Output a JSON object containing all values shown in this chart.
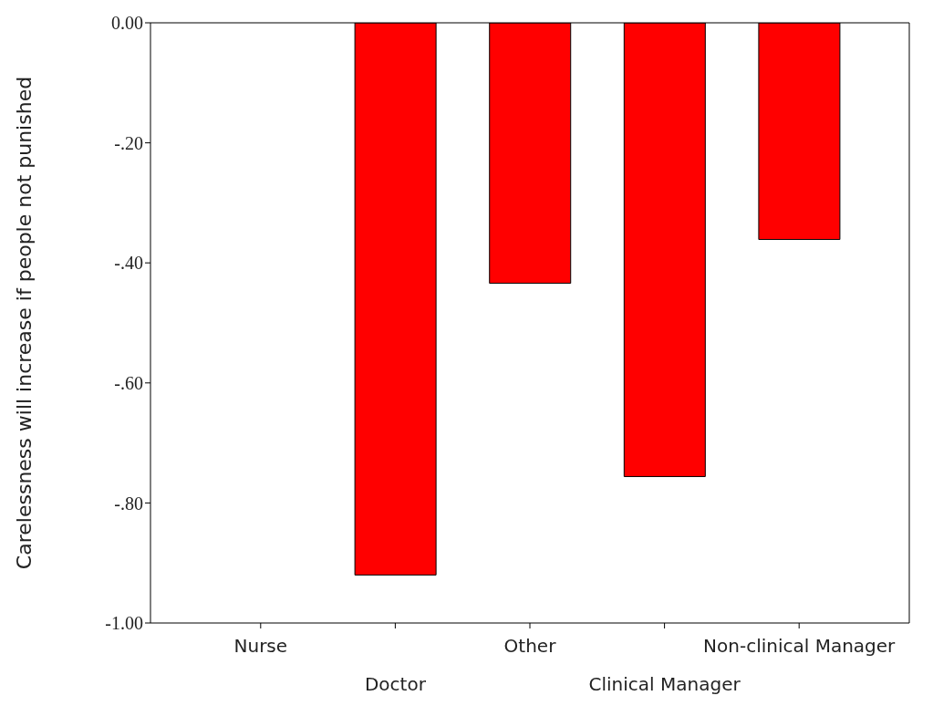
{
  "chart_data": {
    "type": "bar",
    "ylabel": "Carelessness will increase if people not punished",
    "categories": [
      "Nurse",
      "Doctor",
      "Other",
      "Clinical Manager",
      "Non-clinical Manager"
    ],
    "values": [
      0,
      -0.92,
      -0.434,
      -0.756,
      -0.361
    ],
    "color": "#ff0000",
    "ylim": [
      -1,
      0
    ],
    "yticks": [
      {
        "value": -1,
        "label": "-1.00"
      },
      {
        "value": -0.8,
        "label": "-.80"
      },
      {
        "value": -0.6,
        "label": "-.60"
      },
      {
        "value": -0.4,
        "label": "-.40"
      },
      {
        "value": -0.2,
        "label": "-.20"
      },
      {
        "value": 0,
        "label": "0.00"
      }
    ],
    "grid": false,
    "legend": false
  }
}
